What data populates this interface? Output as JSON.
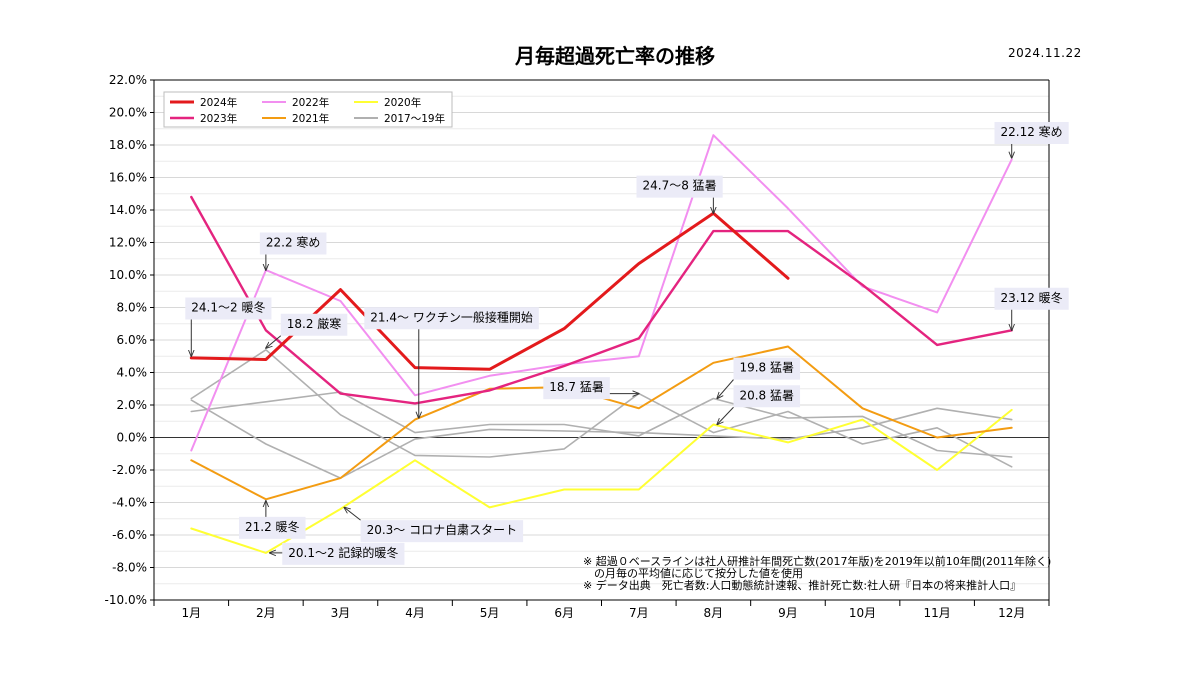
{
  "title": "月毎超過死亡率の推移",
  "date": "2024.11.22",
  "chart_data": {
    "type": "line",
    "categories": [
      "1月",
      "2月",
      "3月",
      "4月",
      "5月",
      "6月",
      "7月",
      "8月",
      "9月",
      "10月",
      "11月",
      "12月"
    ],
    "ylim": [
      -10,
      22
    ],
    "yticks": [
      -10,
      -8,
      -6,
      -4,
      -2,
      0,
      2,
      4,
      6,
      8,
      10,
      12,
      14,
      16,
      18,
      20,
      22
    ],
    "ytick_labels": [
      "-10.0%",
      "-8.0%",
      "-6.0%",
      "-4.0%",
      "-2.0%",
      "0.0%",
      "2.0%",
      "4.0%",
      "6.0%",
      "8.0%",
      "10.0%",
      "12.0%",
      "14.0%",
      "16.0%",
      "18.0%",
      "20.0%",
      "22.0%"
    ],
    "grid": true,
    "legend_position": "top-left",
    "series": [
      {
        "name": "2024年",
        "color": "#e31a1c",
        "width": 3,
        "values": [
          4.9,
          4.8,
          9.1,
          4.3,
          4.2,
          6.7,
          10.7,
          13.8,
          9.8,
          null,
          null,
          null
        ]
      },
      {
        "name": "2023年",
        "color": "#e4247f",
        "width": 2.4,
        "values": [
          14.8,
          6.6,
          2.7,
          2.1,
          2.9,
          4.4,
          6.1,
          12.7,
          12.7,
          9.4,
          5.7,
          6.6
        ]
      },
      {
        "name": "2022年",
        "color": "#f28ff0",
        "width": 2,
        "values": [
          -0.8,
          10.3,
          8.4,
          2.6,
          3.8,
          4.5,
          5.0,
          18.6,
          14.1,
          9.3,
          7.7,
          17.1
        ]
      },
      {
        "name": "2021年",
        "color": "#f39c12",
        "width": 2,
        "values": [
          -1.4,
          -3.8,
          -2.5,
          1.1,
          3.0,
          3.1,
          1.8,
          4.6,
          5.6,
          1.8,
          0.0,
          0.6
        ]
      },
      {
        "name": "2020年",
        "color": "#ffff33",
        "width": 2,
        "values": [
          -5.6,
          -7.1,
          -4.4,
          -1.4,
          -4.3,
          -3.2,
          -3.2,
          0.8,
          -0.3,
          1.1,
          -2.0,
          1.7
        ]
      },
      {
        "name": "2017〜19年",
        "color": "#b0b0b0",
        "width": 1.6,
        "values": [
          2.3,
          -0.4,
          -2.5,
          -0.1,
          0.5,
          0.4,
          0.3,
          0.1,
          -0.1,
          0.6,
          1.8,
          1.1
        ]
      },
      {
        "name": "",
        "color": "#b0b0b0",
        "width": 1.6,
        "values": [
          1.6,
          2.2,
          2.8,
          0.3,
          0.8,
          0.8,
          0.1,
          2.4,
          1.2,
          1.3,
          -0.8,
          -1.2
        ]
      },
      {
        "name": "",
        "color": "#b0b0b0",
        "width": 1.6,
        "values": [
          2.4,
          5.4,
          1.4,
          -1.1,
          -1.2,
          -0.7,
          2.7,
          0.3,
          1.6,
          -0.4,
          0.6,
          -1.8
        ]
      }
    ],
    "annotations": [
      {
        "text": "24.1〜2 暖冬",
        "box_x": 0,
        "box_y": 8.0,
        "tip_x": 0,
        "tip_y": 5.0
      },
      {
        "text": "22.2 寒め",
        "box_x": 1,
        "box_y": 12.0,
        "tip_x": 1,
        "tip_y": 10.3
      },
      {
        "text": "18.2 厳寒",
        "box_x": 1.28,
        "box_y": 7.0,
        "tip_x": 1,
        "tip_y": 5.5
      },
      {
        "text": "21.4〜 ワクチン一般接種開始",
        "box_x": 2.4,
        "box_y": 7.4,
        "tip_x": 3.05,
        "tip_y": 1.2
      },
      {
        "text": "24.7〜8 猛暑",
        "box_x": 6.05,
        "box_y": 15.5,
        "tip_x": 7,
        "tip_y": 13.8
      },
      {
        "text": "22.12 寒め",
        "box_x": 10.85,
        "box_y": 18.8,
        "tip_x": 11,
        "tip_y": 17.2
      },
      {
        "text": "23.12 暖冬",
        "box_x": 10.85,
        "box_y": 8.6,
        "tip_x": 11,
        "tip_y": 6.6
      },
      {
        "text": "19.8 猛暑",
        "box_x": 7.35,
        "box_y": 4.3,
        "tip_x": 7.05,
        "tip_y": 2.4
      },
      {
        "text": "18.7 猛暑",
        "box_x": 4.8,
        "box_y": 3.1,
        "tip_x": 6.0,
        "tip_y": 2.7
      },
      {
        "text": "20.8 猛暑",
        "box_x": 7.35,
        "box_y": 2.6,
        "tip_x": 7.05,
        "tip_y": 0.8
      },
      {
        "text": "21.2 暖冬",
        "box_x": 0.72,
        "box_y": -5.5,
        "tip_x": 1.0,
        "tip_y": -3.9
      },
      {
        "text": "20.3〜 コロナ自粛スタート",
        "box_x": 2.35,
        "box_y": -5.7,
        "tip_x": 2.05,
        "tip_y": -4.3
      },
      {
        "text": "20.1〜2 記録的暖冬",
        "box_x": 1.3,
        "box_y": -7.1,
        "tip_x": 1.05,
        "tip_y": -7.1
      }
    ],
    "notes": [
      "※ 超過０ベースラインは社人研推計年間死亡数(2017年版)を2019年以前10年間(2011年除く)",
      "　の月毎の平均値に応じて按分した値を使用",
      "※ データ出典　死亡者数:人口動態統計速報、推計死亡数:社人研『日本の将来推計人口』"
    ]
  }
}
